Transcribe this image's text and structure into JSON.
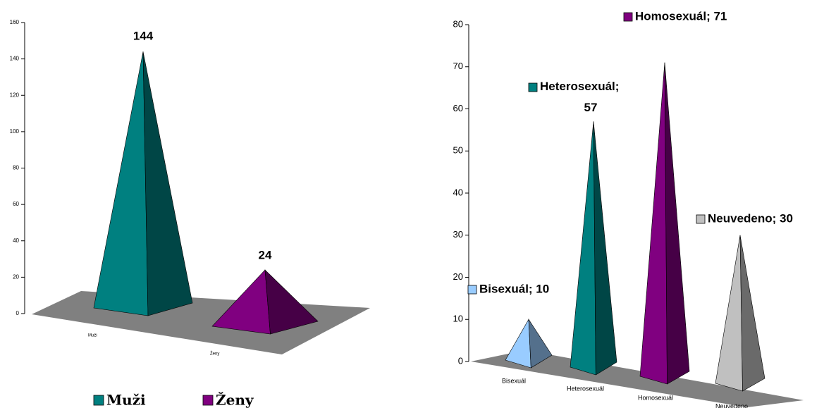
{
  "chart_data": [
    {
      "type": "pyramid",
      "categories": [
        "Muži",
        "Ženy"
      ],
      "values": [
        144,
        24
      ],
      "colors": [
        "#008080",
        "#800080"
      ],
      "ylim": [
        0,
        160
      ],
      "yticks": [
        0,
        20,
        40,
        60,
        80,
        100,
        120,
        140,
        160
      ],
      "legend": "bottom"
    },
    {
      "type": "pyramid",
      "categories": [
        "Bisexuál",
        "Heterosexuál",
        "Homosexuál",
        "Neuvedeno"
      ],
      "values": [
        10,
        57,
        71,
        30
      ],
      "value_labels": [
        "Bisexuál; 10",
        "Heterosexuál; 57",
        "Homosexuál; 71",
        "Neuvedeno; 30"
      ],
      "colors": [
        "#99ccff",
        "#008080",
        "#800080",
        "#c0c0c0"
      ],
      "ylim": [
        0,
        80
      ],
      "yticks": [
        0,
        10,
        20,
        30,
        40,
        50,
        60,
        70,
        80
      ]
    }
  ]
}
